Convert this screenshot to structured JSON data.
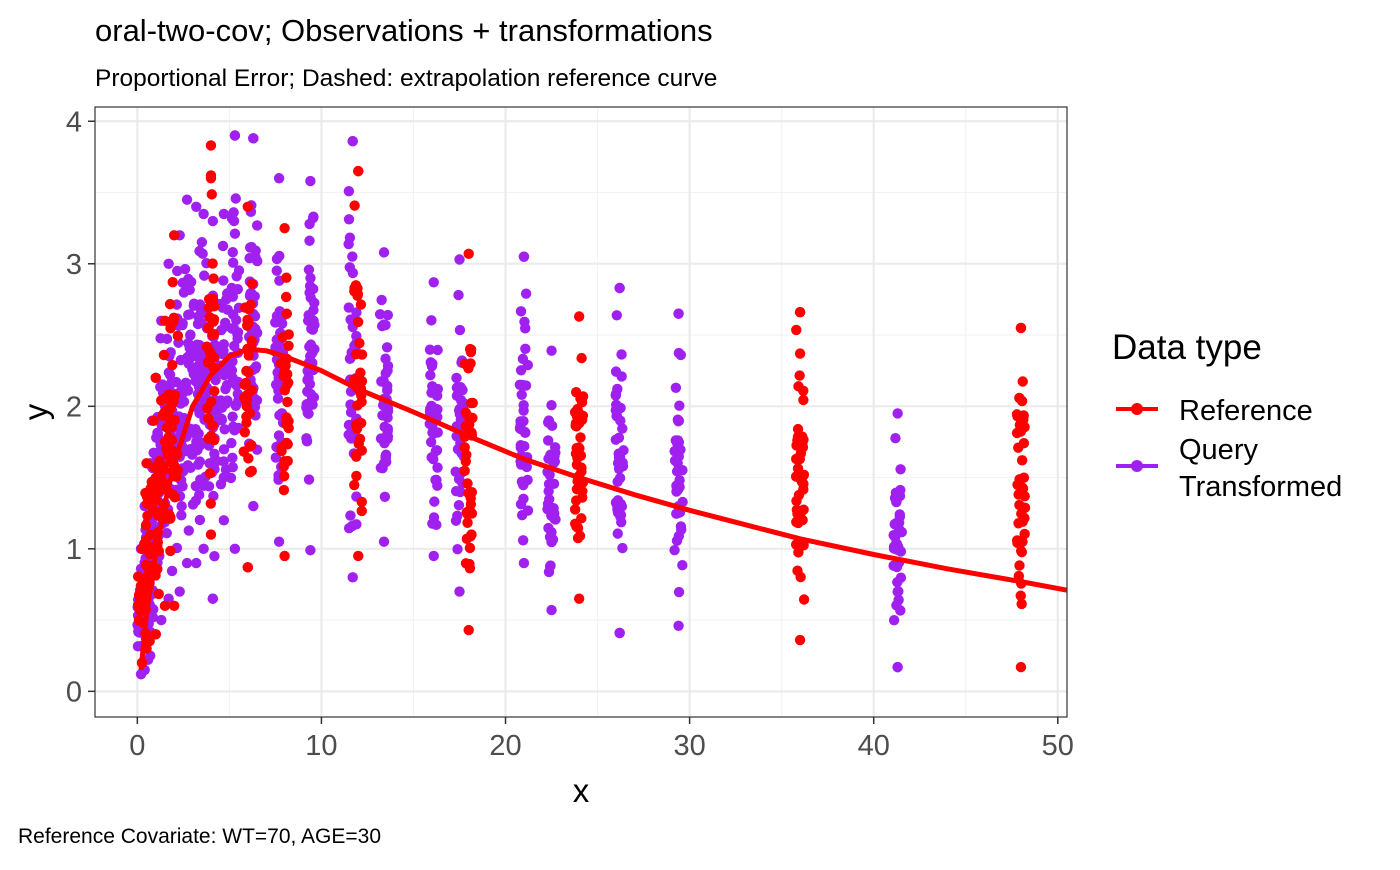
{
  "chart_data": {
    "type": "scatter",
    "title": "oral-two-cov; Observations + transformations",
    "subtitle": "Proportional Error; Dashed: extrapolation reference curve",
    "caption": "Reference Covariate: WT=70, AGE=30",
    "xlabel": "x",
    "ylabel": "y",
    "xlim": [
      -2.3,
      50.5
    ],
    "ylim": [
      -0.18,
      4.1
    ],
    "x_ticks": [
      0,
      10,
      20,
      30,
      40,
      50
    ],
    "y_ticks": [
      0,
      1,
      2,
      3,
      4
    ],
    "grid": true,
    "legend": {
      "title": "Data type",
      "position": "right",
      "entries": [
        {
          "label_lines": [
            "Reference"
          ],
          "color": "#FF0000"
        },
        {
          "label_lines": [
            "Query",
            "Transformed"
          ],
          "color": "#A020F0"
        }
      ]
    },
    "colors": {
      "reference": "#FF0000",
      "query": "#A020F0"
    },
    "series": [
      {
        "name": "Reference",
        "color": "#FF0000",
        "clusters": [
          {
            "x": 0.25,
            "ymin": 0.2,
            "ymax": 1.0,
            "n": 22
          },
          {
            "x": 0.5,
            "ymin": 0.3,
            "ymax": 1.6,
            "n": 24
          },
          {
            "x": 1.0,
            "ymin": 0.4,
            "ymax": 2.2,
            "n": 28
          },
          {
            "x": 1.5,
            "ymin": 0.6,
            "ymax": 2.6,
            "n": 28
          },
          {
            "x": 2.0,
            "ymin": 0.6,
            "ymax": 3.2,
            "n": 30
          },
          {
            "x": 4.0,
            "ymin": 1.1,
            "ymax": 3.6,
            "n": 30
          },
          {
            "x": 6.0,
            "ymin": 0.87,
            "ymax": 3.4,
            "n": 34
          },
          {
            "x": 8.0,
            "ymin": 0.95,
            "ymax": 3.25,
            "n": 34
          },
          {
            "x": 12.0,
            "ymin": 0.95,
            "ymax": 3.65,
            "n": 34
          },
          {
            "x": 18.0,
            "ymin": 0.43,
            "ymax": 3.07,
            "n": 40
          },
          {
            "x": 24.0,
            "ymin": 0.65,
            "ymax": 2.63,
            "n": 40
          },
          {
            "x": 36.0,
            "ymin": 0.36,
            "ymax": 2.66,
            "n": 40
          },
          {
            "x": 48.0,
            "ymin": 0.17,
            "ymax": 2.55,
            "n": 40
          }
        ],
        "extra_points": [
          {
            "x": 4.0,
            "y": 3.83
          },
          {
            "x": 4.0,
            "y": 3.62
          },
          {
            "x": 6.0,
            "y": 0.87
          },
          {
            "x": 12.0,
            "y": 3.65
          },
          {
            "x": 36.0,
            "y": 2.66
          },
          {
            "x": 36.0,
            "y": 2.37
          },
          {
            "x": 48.0,
            "y": 2.55
          }
        ]
      },
      {
        "name": "Query Transformed",
        "color": "#A020F0",
        "clusters": [
          {
            "x": 0.2,
            "ymin": 0.12,
            "ymax": 1.0,
            "n": 30
          },
          {
            "x": 0.4,
            "ymin": 0.15,
            "ymax": 1.3,
            "n": 30
          },
          {
            "x": 0.7,
            "ymin": 0.25,
            "ymax": 1.6,
            "n": 32
          },
          {
            "x": 1.0,
            "ymin": 0.4,
            "ymax": 2.2,
            "n": 34
          },
          {
            "x": 1.3,
            "ymin": 0.5,
            "ymax": 2.6,
            "n": 34
          },
          {
            "x": 1.7,
            "ymin": 0.65,
            "ymax": 3.0,
            "n": 36
          },
          {
            "x": 2.3,
            "ymin": 0.7,
            "ymax": 3.2,
            "n": 36
          },
          {
            "x": 2.7,
            "ymin": 0.9,
            "ymax": 3.45,
            "n": 38
          },
          {
            "x": 3.2,
            "ymin": 0.9,
            "ymax": 3.4,
            "n": 38
          },
          {
            "x": 3.6,
            "ymin": 1.0,
            "ymax": 3.35,
            "n": 38
          },
          {
            "x": 4.1,
            "ymin": 0.65,
            "ymax": 3.3,
            "n": 38
          },
          {
            "x": 4.7,
            "ymin": 1.2,
            "ymax": 3.35,
            "n": 38
          },
          {
            "x": 5.3,
            "ymin": 1.0,
            "ymax": 3.9,
            "n": 40
          },
          {
            "x": 6.3,
            "ymin": 1.3,
            "ymax": 3.88,
            "n": 44
          },
          {
            "x": 7.7,
            "ymin": 1.05,
            "ymax": 3.6,
            "n": 44
          },
          {
            "x": 9.4,
            "ymin": 0.99,
            "ymax": 3.58,
            "n": 44
          },
          {
            "x": 11.7,
            "ymin": 0.8,
            "ymax": 3.86,
            "n": 44
          },
          {
            "x": 13.4,
            "ymin": 1.05,
            "ymax": 3.08,
            "n": 40
          },
          {
            "x": 16.1,
            "ymin": 0.95,
            "ymax": 2.87,
            "n": 40
          },
          {
            "x": 17.5,
            "ymin": 0.7,
            "ymax": 3.03,
            "n": 40
          },
          {
            "x": 21.0,
            "ymin": 0.9,
            "ymax": 3.05,
            "n": 40
          },
          {
            "x": 22.5,
            "ymin": 0.57,
            "ymax": 2.39,
            "n": 40
          },
          {
            "x": 26.2,
            "ymin": 0.41,
            "ymax": 2.83,
            "n": 40
          },
          {
            "x": 29.4,
            "ymin": 0.46,
            "ymax": 2.65,
            "n": 40
          },
          {
            "x": 41.3,
            "ymin": 0.17,
            "ymax": 1.95,
            "n": 40
          }
        ],
        "extra_points": [
          {
            "x": 5.3,
            "y": 3.9
          },
          {
            "x": 6.3,
            "y": 3.88
          },
          {
            "x": 11.7,
            "y": 3.86
          },
          {
            "x": 21.0,
            "y": 3.05
          },
          {
            "x": 26.2,
            "y": 2.83
          },
          {
            "x": 26.2,
            "y": 0.41
          },
          {
            "x": 29.4,
            "y": 2.65
          },
          {
            "x": 41.3,
            "y": 0.17
          },
          {
            "x": 4.1,
            "y": 0.65
          }
        ]
      }
    ],
    "reference_curve": {
      "name": "reference curve",
      "color": "#FF0000",
      "x": [
        0.2,
        0.5,
        1,
        1.5,
        2,
        3,
        4,
        5,
        6,
        7,
        8,
        10,
        12,
        15,
        18,
        21,
        24,
        27,
        30,
        33,
        36,
        40,
        44,
        48,
        50.5
      ],
      "y": [
        0.15,
        0.55,
        0.97,
        1.32,
        1.6,
        2.0,
        2.22,
        2.35,
        2.4,
        2.39,
        2.35,
        2.25,
        2.12,
        1.96,
        1.79,
        1.63,
        1.5,
        1.38,
        1.27,
        1.17,
        1.07,
        0.96,
        0.86,
        0.77,
        0.71
      ]
    }
  }
}
